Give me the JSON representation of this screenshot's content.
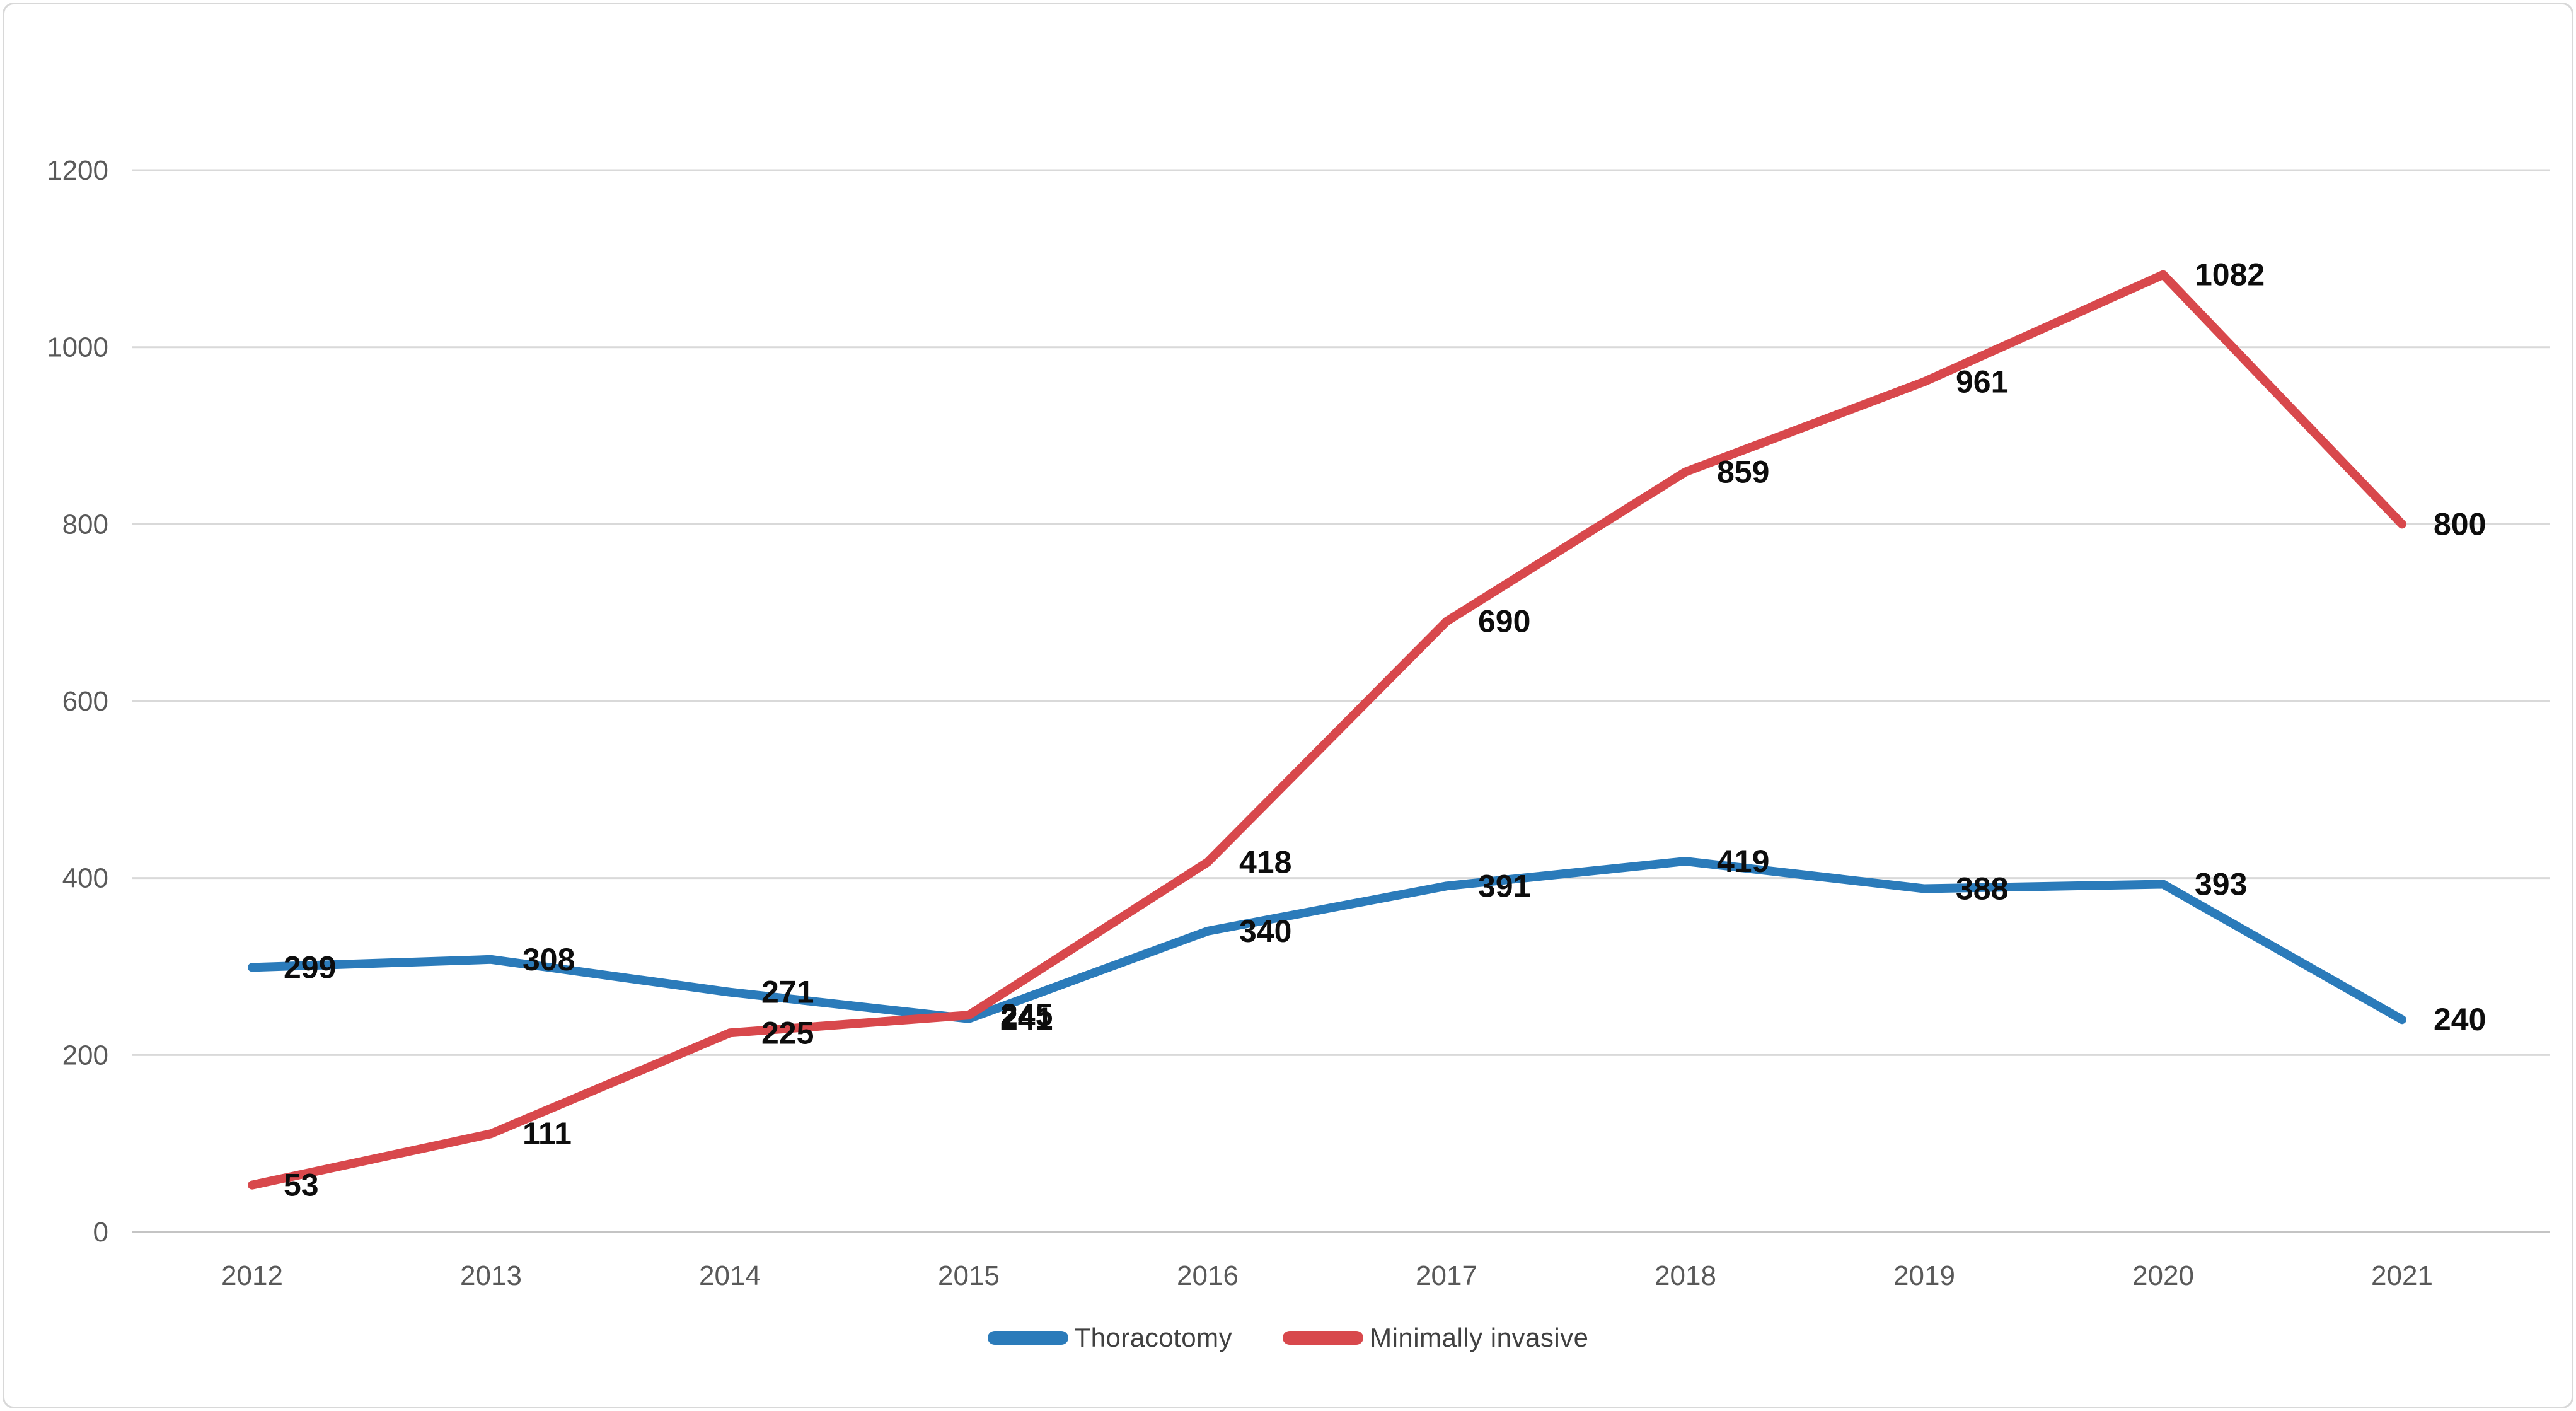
{
  "chart_data": {
    "type": "line",
    "categories": [
      "2012",
      "2013",
      "2014",
      "2015",
      "2016",
      "2017",
      "2018",
      "2019",
      "2020",
      "2021"
    ],
    "series": [
      {
        "name": "Thoracotomy",
        "color": "#2B7BBA",
        "values": [
          299,
          308,
          271,
          241,
          340,
          391,
          419,
          388,
          393,
          240
        ]
      },
      {
        "name": "Minimally invasive",
        "color": "#D8484C",
        "values": [
          53,
          111,
          225,
          245,
          418,
          690,
          859,
          961,
          1082,
          800
        ]
      }
    ],
    "title": "",
    "xlabel": "",
    "ylabel": "",
    "ylim": [
      0,
      1200
    ],
    "yticks": [
      0,
      200,
      400,
      600,
      800,
      1000,
      1200
    ],
    "ytick_labels": [
      "0",
      "200",
      "400",
      "600",
      "800",
      "1000",
      "1200"
    ],
    "grid": "horizontal",
    "legend_position": "bottom-center",
    "data_labels_position": "right"
  },
  "colors": {
    "gridline": "#d9d9d9",
    "axis_line": "#c4c4c4",
    "tick_text": "#595959",
    "data_label_text": "#0d0d0d",
    "legend_text": "#404040",
    "frame_border": "#d8d8d8",
    "background": "#ffffff"
  }
}
